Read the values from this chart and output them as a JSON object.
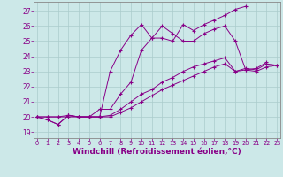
{
  "bg_color": "#cce8e8",
  "grid_color": "#aacccc",
  "line_color": "#880088",
  "xlabel": "Windchill (Refroidissement éolien,°C)",
  "xlabel_fontsize": 6.5,
  "ylabel_ticks": [
    19,
    20,
    21,
    22,
    23,
    24,
    25,
    26,
    27
  ],
  "xlabel_ticks": [
    0,
    1,
    2,
    3,
    4,
    5,
    6,
    7,
    8,
    9,
    10,
    11,
    12,
    13,
    14,
    15,
    16,
    17,
    18,
    19,
    20,
    21,
    22,
    23
  ],
  "xlim": [
    -0.3,
    23.3
  ],
  "ylim": [
    18.6,
    27.6
  ],
  "series": [
    [
      20.0,
      19.8,
      19.5,
      20.1,
      20.0,
      20.0,
      20.0,
      23.0,
      24.4,
      25.4,
      26.1,
      25.2,
      25.2,
      25.0,
      26.1,
      25.7,
      26.1,
      26.4,
      26.7,
      27.1,
      27.3,
      null,
      null,
      null
    ],
    [
      20.0,
      19.8,
      19.5,
      20.1,
      20.0,
      20.0,
      20.5,
      20.5,
      21.5,
      22.3,
      24.4,
      25.2,
      26.0,
      25.5,
      25.0,
      25.0,
      25.5,
      25.8,
      26.0,
      25.0,
      23.1,
      23.2,
      23.6,
      null
    ],
    [
      20.0,
      20.0,
      20.0,
      20.1,
      20.0,
      20.0,
      20.0,
      20.1,
      20.5,
      21.0,
      21.5,
      21.8,
      22.3,
      22.6,
      23.0,
      23.3,
      23.5,
      23.7,
      23.9,
      23.0,
      23.2,
      23.1,
      23.5,
      23.4
    ],
    [
      20.0,
      20.0,
      20.0,
      20.0,
      20.0,
      20.0,
      20.0,
      20.0,
      20.3,
      20.6,
      21.0,
      21.4,
      21.8,
      22.1,
      22.4,
      22.7,
      23.0,
      23.3,
      23.5,
      23.0,
      23.1,
      23.0,
      23.3,
      23.4
    ]
  ]
}
